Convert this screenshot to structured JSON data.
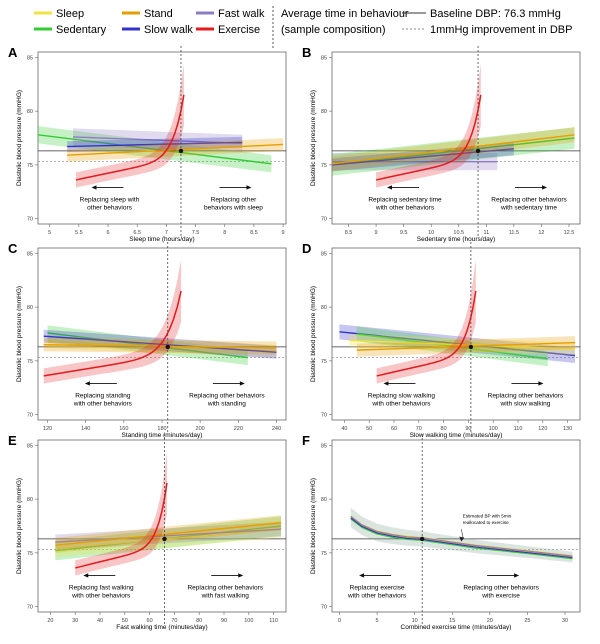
{
  "legend": {
    "items": [
      {
        "label": "Sleep",
        "color": "#f0e442"
      },
      {
        "label": "Sedentary",
        "color": "#33cc33"
      },
      {
        "label": "Stand",
        "color": "#e69f00"
      },
      {
        "label": "Slow walk",
        "color": "#3333cc"
      },
      {
        "label": "Fast walk",
        "color": "#8e7cc3"
      },
      {
        "label": "Exercise",
        "color": "#e41a1c"
      }
    ],
    "avg_title": "Average time in behaviour",
    "avg_subtitle": "(sample composition)",
    "baseline_label": "Baseline DBP: 76.3 mmHg",
    "improvement_label": "1mmHg improvement in DBP"
  },
  "chart_data": [
    {
      "panel": "A",
      "type": "line",
      "ylabel": "Diastolic blood pressure (mmHG)",
      "xlabel": "Sleep time (hours/day)",
      "xlim": [
        4.8,
        9.05
      ],
      "ylim": [
        69.5,
        85.5
      ],
      "x_ticks": [
        5,
        5.5,
        6,
        6.5,
        7,
        7.5,
        8,
        8.5,
        9
      ],
      "y_ticks": [
        70,
        75,
        80,
        85
      ],
      "baseline": 76.3,
      "improvement": 75.3,
      "avg_x": 7.25,
      "exercise_x_range": [
        5.45,
        7.3
      ],
      "series": [
        {
          "name": "Sedentary",
          "x": [
            4.8,
            8.8
          ],
          "y": [
            77.8,
            75.1
          ],
          "ci": 0.8
        },
        {
          "name": "Fast walk",
          "x": [
            5.4,
            8.3
          ],
          "y": [
            77.6,
            77.0
          ],
          "ci": 0.8
        },
        {
          "name": "Slow walk",
          "x": [
            5.3,
            8.3
          ],
          "y": [
            76.7,
            77.1
          ],
          "ci": 0.5
        },
        {
          "name": "Stand",
          "x": [
            5.3,
            9.0
          ],
          "y": [
            75.9,
            76.9
          ],
          "ci": 0.6
        }
      ],
      "left_text": [
        "Replacing sleep with",
        "other behaviors"
      ],
      "right_text": [
        "Replacing other",
        "behaviors with sleep"
      ]
    },
    {
      "panel": "B",
      "type": "line",
      "ylabel": "Diastolic blood pressure (mmHG)",
      "xlabel": "Sedentary time (hours/day)",
      "xlim": [
        8.2,
        12.7
      ],
      "ylim": [
        69.5,
        85.5
      ],
      "x_ticks": [
        8.5,
        9,
        9.5,
        10,
        10.5,
        11,
        11.5,
        12,
        12.5
      ],
      "y_ticks": [
        70,
        75,
        80,
        85
      ],
      "baseline": 76.3,
      "improvement": 75.3,
      "avg_x": 10.85,
      "exercise_x_range": [
        9.0,
        10.9
      ],
      "series": [
        {
          "name": "Fast walk",
          "x": [
            8.2,
            11.2
          ],
          "y": [
            75.3,
            75.3
          ],
          "ci": 0.8
        },
        {
          "name": "Sedentary",
          "x": [
            8.2,
            12.6
          ],
          "y": [
            75.0,
            77.5
          ],
          "ci": 1.0
        },
        {
          "name": "Slow walk",
          "x": [
            8.2,
            11.5
          ],
          "y": [
            75.0,
            76.5
          ],
          "ci": 0.6
        },
        {
          "name": "Stand",
          "x": [
            8.2,
            12.6
          ],
          "y": [
            75.1,
            77.8
          ],
          "ci": 0.7
        }
      ],
      "left_text": [
        "Replacing sedentary time",
        "with other behaviors"
      ],
      "right_text": [
        "Replacing other behaviors",
        "with sedentary time"
      ]
    },
    {
      "panel": "C",
      "type": "line",
      "ylabel": "Diastolic blood pressure (mmHG)",
      "xlabel": "Standing time (minutes/day)",
      "xlim": [
        115,
        245
      ],
      "ylim": [
        69.5,
        85.5
      ],
      "x_ticks": [
        120,
        140,
        160,
        180,
        200,
        220,
        240
      ],
      "y_ticks": [
        70,
        75,
        80,
        85
      ],
      "baseline": 76.3,
      "improvement": 75.3,
      "avg_x": 183,
      "exercise_x_range": [
        118,
        190
      ],
      "series": [
        {
          "name": "Sedentary",
          "x": [
            120,
            225
          ],
          "y": [
            77.6,
            75.3
          ],
          "ci": 0.7
        },
        {
          "name": "Sleep",
          "x": [
            120,
            240
          ],
          "y": [
            76.8,
            75.9
          ],
          "ci": 0.6
        },
        {
          "name": "Slow walk",
          "x": [
            118,
            240
          ],
          "y": [
            77.3,
            75.8
          ],
          "ci": 0.6
        },
        {
          "name": "Stand",
          "x": [
            118,
            240
          ],
          "y": [
            76.5,
            76.2
          ],
          "ci": 0.6
        }
      ],
      "left_text": [
        "Replacing standing",
        "with other behaviors"
      ],
      "right_text": [
        "Replacing other behaviors",
        "with standing"
      ]
    },
    {
      "panel": "D",
      "type": "line",
      "ylabel": "Diastolic blood pressure (mmHG)",
      "xlabel": "Slow walking time (minutes/day)",
      "xlim": [
        35,
        135
      ],
      "ylim": [
        69.5,
        85.5
      ],
      "x_ticks": [
        40,
        50,
        60,
        70,
        80,
        90,
        100,
        110,
        120,
        130
      ],
      "y_ticks": [
        70,
        75,
        80,
        85
      ],
      "baseline": 76.3,
      "improvement": 75.3,
      "avg_x": 91,
      "exercise_x_range": [
        53,
        93
      ],
      "series": [
        {
          "name": "Slow walk",
          "x": [
            38,
            133
          ],
          "y": [
            77.7,
            75.5
          ],
          "ci": 0.7
        },
        {
          "name": "Sedentary",
          "x": [
            45,
            122
          ],
          "y": [
            77.5,
            75.2
          ],
          "ci": 0.7
        },
        {
          "name": "Sleep",
          "x": [
            42,
            133
          ],
          "y": [
            76.9,
            76.1
          ],
          "ci": 0.6
        },
        {
          "name": "Stand",
          "x": [
            45,
            133
          ],
          "y": [
            76.0,
            76.7
          ],
          "ci": 0.6
        }
      ],
      "left_text": [
        "Replacing slow walking",
        "with other behaviors"
      ],
      "right_text": [
        "Replacing other behaviors",
        "with slow walking"
      ]
    },
    {
      "panel": "E",
      "type": "line",
      "ylabel": "Diastolic blood pressure (mmHG)",
      "xlabel": "Fast walking time (minutes/day)",
      "xlim": [
        15,
        115
      ],
      "ylim": [
        69.5,
        85.5
      ],
      "x_ticks": [
        20,
        30,
        40,
        50,
        60,
        70,
        80,
        90,
        100,
        110
      ],
      "y_ticks": [
        70,
        75,
        80,
        85
      ],
      "baseline": 76.3,
      "improvement": 75.3,
      "avg_x": 66,
      "exercise_x_range": [
        30,
        67
      ],
      "series": [
        {
          "name": "Sedentary",
          "x": [
            22,
            113
          ],
          "y": [
            75.2,
            77.5
          ],
          "ci": 0.9
        },
        {
          "name": "Sleep",
          "x": [
            22,
            113
          ],
          "y": [
            75.4,
            77.2
          ],
          "ci": 0.8
        },
        {
          "name": "Fast walk",
          "x": [
            22,
            113
          ],
          "y": [
            76.0,
            77.2
          ],
          "ci": 0.7
        },
        {
          "name": "Stand",
          "x": [
            22,
            113
          ],
          "y": [
            75.7,
            77.8
          ],
          "ci": 0.7
        }
      ],
      "left_text": [
        "Replacing fast walking",
        "with other behaviors"
      ],
      "right_text": [
        "Replacing other behaviors",
        "with fast walking"
      ]
    },
    {
      "panel": "F",
      "type": "line",
      "ylabel": "Diastolic blood pressure (mmHG)",
      "xlabel": "Combined exercise time (minutes/day)",
      "xlim": [
        -1,
        32
      ],
      "ylim": [
        69.5,
        85.5
      ],
      "x_ticks": [
        0,
        5,
        10,
        15,
        20,
        25,
        30
      ],
      "y_ticks": [
        70,
        75,
        80,
        85
      ],
      "baseline": 76.3,
      "improvement": 75.3,
      "avg_x": 11,
      "exercise_x_range": null,
      "series": [],
      "decline_x": [
        1.5,
        3,
        5,
        7,
        9,
        11,
        14,
        18,
        22,
        26,
        31
      ],
      "decline_y": [
        78.3,
        77.5,
        76.9,
        76.6,
        76.4,
        76.3,
        76.0,
        75.6,
        75.3,
        75.0,
        74.6
      ],
      "annotation": [
        "Estimated BP with 5min",
        "reallocated to exercise"
      ],
      "left_text": [
        "Replacing exercise",
        "with other behaviors"
      ],
      "right_text": [
        "Replacing other behaviors",
        "with exercise"
      ]
    }
  ]
}
